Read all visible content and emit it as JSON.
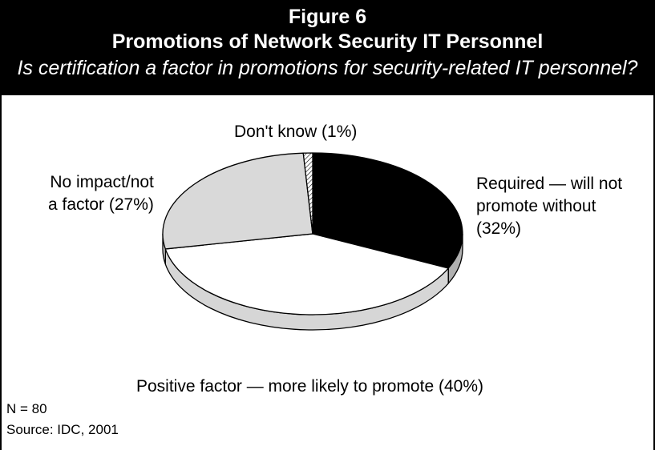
{
  "header": {
    "figure_number": "Figure 6",
    "title": "Promotions of Network Security IT Personnel",
    "question": "Is certification a factor in promotions for security-related IT personnel?"
  },
  "chart_data": {
    "type": "pie",
    "style": "3d",
    "title": "Promotions of Network Security IT Personnel",
    "slices": [
      {
        "label_lines": [
          "Required — will not",
          "promote without",
          "(32%)"
        ],
        "value": 32,
        "color": "#000000"
      },
      {
        "label_lines": [
          "Positive factor — more likely to promote (40%)"
        ],
        "value": 40,
        "color": "#ffffff"
      },
      {
        "label_lines": [
          "No impact/not",
          "a factor (27%)"
        ],
        "value": 27,
        "color": "#d9d9d9"
      },
      {
        "label_lines": [
          "Don't know (1%)"
        ],
        "value": 1,
        "color": "hatched"
      }
    ]
  },
  "footer": {
    "n": "N = 80",
    "source": "Source: IDC, 2001"
  }
}
